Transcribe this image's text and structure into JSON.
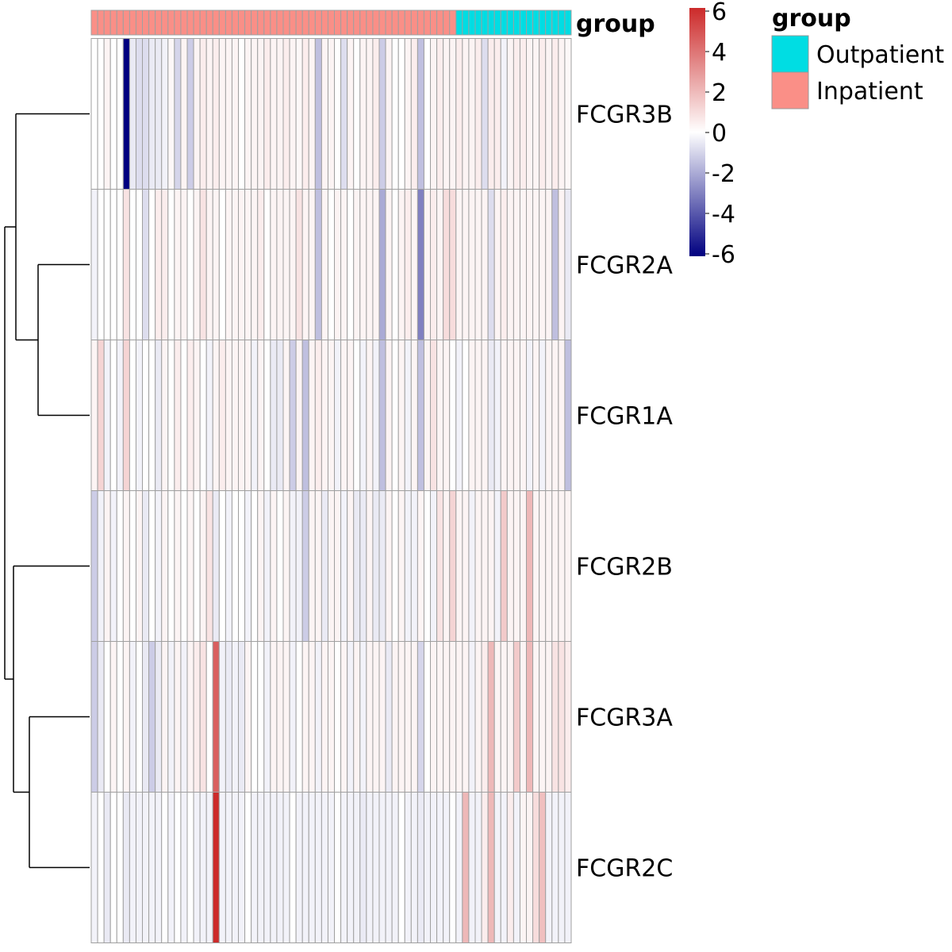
{
  "chart_data": {
    "type": "heatmap",
    "title": "",
    "xlabel": "",
    "ylabel": "",
    "rows": [
      "FCGR3B",
      "FCGR2A",
      "FCGR1A",
      "FCGR2B",
      "FCGR3A",
      "FCGR2C"
    ],
    "n_columns": 75,
    "annotation": {
      "name": "group",
      "inpatient_count": 57,
      "outpatient_count": 18
    },
    "legend": {
      "title": "group",
      "entries": [
        {
          "label": "Outpatient",
          "color": "#00DDE3"
        },
        {
          "label": "Inpatient",
          "color": "#FA8F87"
        }
      ]
    },
    "colorbar": {
      "ticks": [
        "6",
        "4",
        "2",
        "0",
        "-2",
        "-4",
        "-6"
      ],
      "range": [
        -6,
        6
      ],
      "low_color": "#000080",
      "mid_color": "#FFFFFF",
      "high_color": "#CC2A2A"
    },
    "cell_border_color": "#A0A0A0",
    "values": [
      [
        0.0,
        0.0,
        0.3,
        0.0,
        0.0,
        -6.0,
        -0.5,
        -0.8,
        -0.8,
        -0.5,
        -0.5,
        -0.3,
        0.2,
        -1.0,
        0.3,
        -1.2,
        0.3,
        0.5,
        0.3,
        0.5,
        0.3,
        0.3,
        0.3,
        0.0,
        0.3,
        0.3,
        0.3,
        0.5,
        0.3,
        0.3,
        0.5,
        0.3,
        0.2,
        0.5,
        0.3,
        -1.5,
        0.3,
        0.3,
        0.0,
        -0.8,
        0.3,
        0.0,
        0.3,
        0.3,
        0.5,
        -1.2,
        0.3,
        0.0,
        0.0,
        0.3,
        0.5,
        -1.5,
        0.0,
        0.3,
        0.5,
        0.3,
        0.3,
        0.5,
        0.3,
        0.3,
        0.5,
        -0.8,
        0.5,
        0.5,
        -0.3,
        0.3,
        0.5,
        0.5,
        0.3,
        0.3,
        0.5,
        0.3,
        0.5,
        0.3,
        0.2
      ],
      [
        -0.3,
        0.0,
        0.0,
        0.0,
        0.0,
        0.8,
        0.0,
        0.0,
        -0.8,
        0.0,
        0.5,
        0.5,
        0.0,
        0.3,
        0.3,
        0.0,
        0.3,
        0.8,
        0.3,
        0.3,
        0.0,
        0.3,
        0.3,
        0.3,
        0.3,
        0.3,
        0.5,
        0.0,
        0.3,
        0.3,
        0.3,
        0.3,
        0.8,
        0.3,
        0.3,
        -1.5,
        0.3,
        0.0,
        0.3,
        0.3,
        0.0,
        0.3,
        0.3,
        0.3,
        0.3,
        -2.0,
        0.3,
        0.0,
        0.3,
        0.5,
        0.3,
        -3.0,
        0.3,
        0.5,
        0.3,
        1.0,
        1.0,
        0.3,
        0.3,
        0.3,
        0.3,
        0.3,
        -0.8,
        0.3,
        0.5,
        0.3,
        0.3,
        0.3,
        0.3,
        0.3,
        0.3,
        0.3,
        -1.5,
        0.3,
        -0.5
      ],
      [
        0.3,
        1.2,
        -0.3,
        0.0,
        -0.3,
        1.2,
        0.0,
        -0.3,
        0.0,
        0.0,
        -0.5,
        0.3,
        0.0,
        0.5,
        0.0,
        0.5,
        0.3,
        0.0,
        -0.3,
        0.3,
        0.5,
        0.3,
        0.3,
        0.3,
        0.3,
        -0.3,
        0.3,
        0.0,
        -0.5,
        -0.5,
        0.3,
        -1.2,
        0.3,
        -1.5,
        0.3,
        0.5,
        0.3,
        0.3,
        -0.3,
        0.3,
        0.3,
        0.0,
        -0.3,
        0.3,
        -0.3,
        -1.5,
        0.3,
        0.0,
        0.3,
        -0.3,
        0.3,
        -1.5,
        0.3,
        0.8,
        0.3,
        0.3,
        0.0,
        -0.3,
        0.0,
        0.3,
        0.3,
        0.3,
        -0.5,
        -0.3,
        0.3,
        0.3,
        0.3,
        0.3,
        -0.3,
        0.3,
        -0.3,
        0.3,
        0.3,
        0.3,
        -1.5
      ],
      [
        -1.2,
        -0.3,
        0.3,
        -0.3,
        0.0,
        0.3,
        0.0,
        0.3,
        -0.5,
        0.0,
        -0.3,
        0.3,
        0.0,
        0.3,
        0.0,
        0.3,
        0.0,
        0.3,
        0.8,
        -0.5,
        0.0,
        -0.3,
        0.0,
        0.0,
        -0.3,
        0.0,
        0.3,
        -0.3,
        0.3,
        0.0,
        0.3,
        -0.3,
        -0.3,
        -1.2,
        0.3,
        0.3,
        -0.5,
        0.3,
        0.3,
        -0.3,
        0.3,
        -0.5,
        -0.5,
        0.3,
        -0.5,
        -0.5,
        0.3,
        0.0,
        0.3,
        -0.3,
        -0.3,
        0.3,
        0.0,
        -0.3,
        0.8,
        0.3,
        1.2,
        0.3,
        0.3,
        -0.3,
        0.3,
        0.3,
        0.3,
        -0.3,
        1.5,
        0.3,
        0.3,
        0.3,
        2.0,
        0.3,
        0.3,
        0.3,
        0.3,
        0.3,
        0.3
      ],
      [
        -1.2,
        -0.5,
        0.0,
        0.3,
        0.0,
        0.3,
        -0.3,
        0.0,
        -0.5,
        -1.2,
        -0.5,
        0.3,
        -0.3,
        0.3,
        -0.3,
        0.3,
        0.5,
        0.8,
        0.0,
        4.5,
        -0.3,
        -0.5,
        -0.3,
        -0.5,
        0.3,
        0.0,
        0.0,
        -0.3,
        0.3,
        0.3,
        0.3,
        -0.3,
        0.0,
        0.3,
        0.3,
        -0.3,
        0.3,
        0.3,
        0.0,
        0.3,
        -0.3,
        0.3,
        -0.3,
        0.3,
        0.3,
        0.3,
        -0.5,
        0.3,
        0.3,
        0.3,
        0.3,
        -1.0,
        0.0,
        0.3,
        0.3,
        0.3,
        0.3,
        0.3,
        0.3,
        -0.3,
        0.3,
        0.5,
        2.0,
        0.3,
        0.3,
        0.3,
        1.5,
        0.3,
        2.0,
        0.3,
        0.3,
        0.3,
        0.8,
        0.8,
        0.5
      ],
      [
        -0.3,
        0.0,
        -0.5,
        0.0,
        0.0,
        -0.5,
        -0.3,
        -0.3,
        -0.3,
        -0.3,
        -0.3,
        0.0,
        -0.3,
        0.0,
        -0.3,
        0.0,
        -0.3,
        -0.3,
        -0.3,
        6.0,
        -0.3,
        -0.3,
        -0.3,
        -0.3,
        0.0,
        -0.3,
        -0.3,
        -0.3,
        -0.3,
        -0.3,
        -0.3,
        0.0,
        -0.3,
        -0.3,
        -0.3,
        -0.3,
        -0.3,
        -0.3,
        0.0,
        -0.3,
        -0.3,
        -0.3,
        -0.5,
        -0.3,
        -0.3,
        -0.3,
        -0.3,
        -0.3,
        0.0,
        -0.3,
        -0.3,
        -0.5,
        -0.3,
        -0.3,
        -0.3,
        -0.3,
        0.0,
        -0.3,
        2.0,
        -0.3,
        -0.3,
        0.5,
        2.0,
        -0.3,
        -0.3,
        0.5,
        -0.3,
        0.3,
        0.3,
        1.0,
        1.8,
        -0.3,
        -0.3,
        -0.3,
        -0.3
      ]
    ]
  }
}
